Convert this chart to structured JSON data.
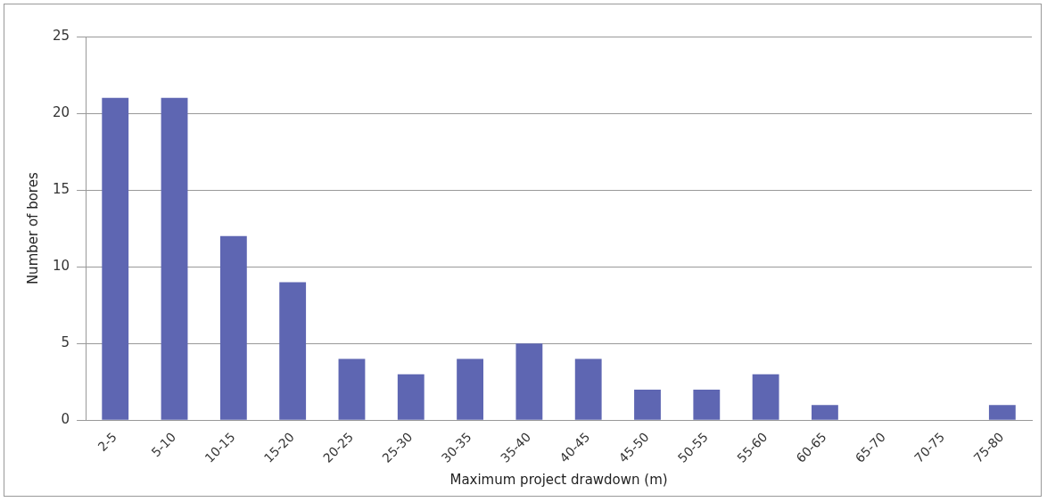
{
  "chart_data": {
    "type": "bar",
    "xlabel": "Maximum project drawdown (m)",
    "ylabel": "Number of bores",
    "categories": [
      "2-5",
      "5-10",
      "10-15",
      "15-20",
      "20-25",
      "25-30",
      "30-35",
      "35-40",
      "40-45",
      "45-50",
      "50-55",
      "55-60",
      "60-65",
      "65-70",
      "70-75",
      "75-80"
    ],
    "values": [
      21,
      21,
      12,
      9,
      4,
      3,
      4,
      5,
      4,
      2,
      2,
      3,
      1,
      0,
      0,
      1
    ],
    "color": "#5e66b2",
    "ylim": [
      0,
      25
    ],
    "yticks": [
      0,
      5,
      10,
      15,
      20,
      25
    ],
    "grid": "y",
    "legend": false
  }
}
